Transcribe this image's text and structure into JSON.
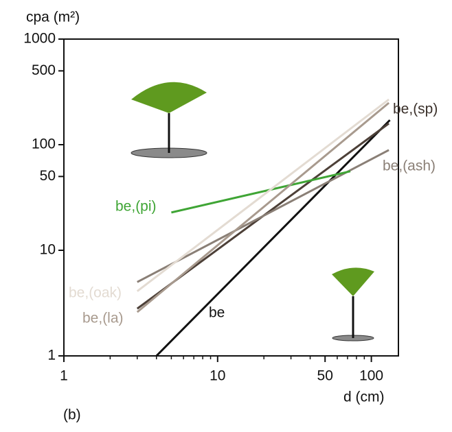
{
  "chart_data": {
    "type": "line",
    "y_label": "cpa (m²)",
    "x_label": "d (cm)",
    "annotation": "(b)",
    "xlog": true,
    "ylog": true,
    "xlim": [
      1,
      150
    ],
    "ylim": [
      1,
      1000
    ],
    "xticks": [
      1,
      10,
      50,
      100
    ],
    "yticks": [
      1,
      10,
      50,
      100,
      500,
      1000
    ],
    "xminorticks": [
      2,
      3,
      4,
      5,
      6,
      7,
      8,
      9,
      20,
      30,
      40,
      60,
      70,
      80,
      90
    ],
    "series": [
      {
        "name": "be",
        "color": "#111111",
        "x": [
          4,
          132
        ],
        "values": [
          1,
          171
        ]
      },
      {
        "name": "be,(sp)",
        "color": "#4d4038",
        "x": [
          3,
          130
        ],
        "values": [
          2.8,
          159
        ]
      },
      {
        "name": "be,(ash)",
        "color": "#8a7f76",
        "x": [
          3,
          130
        ],
        "values": [
          5,
          89
        ]
      },
      {
        "name": "be,(pi)",
        "color": "#3fa535",
        "x": [
          5,
          73
        ],
        "values": [
          22.8,
          56
        ]
      },
      {
        "name": "be,(oak)",
        "color": "#e3dbd2",
        "x": [
          3,
          130
        ],
        "values": [
          4.1,
          268
        ]
      },
      {
        "name": "be,(la)",
        "color": "#a89a8e",
        "x": [
          3,
          130
        ],
        "values": [
          2.6,
          249
        ]
      }
    ]
  }
}
